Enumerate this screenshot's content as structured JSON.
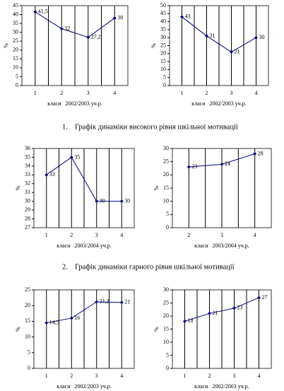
{
  "chart_data": [
    {
      "type": "line",
      "y_label": "%",
      "x_label": "класи   2002/2003 уч.р.",
      "categories": [
        "1",
        "2",
        "3",
        "4"
      ],
      "series": [
        {
          "color": "#000080",
          "values": [
            41.5,
            32,
            27.2,
            38
          ],
          "value_labels": [
            "41,5",
            "32",
            "27,2",
            "38"
          ]
        }
      ],
      "ylim": [
        0,
        45
      ],
      "yticks": [
        0,
        5,
        10,
        15,
        20,
        25,
        30,
        35,
        40,
        45
      ],
      "vertical_grid": true
    },
    {
      "type": "line",
      "y_label": "%",
      "x_label": "класи   2002/2003 уч.р.",
      "categories": [
        "1",
        "2",
        "3",
        "4"
      ],
      "series": [
        {
          "color": "#000080",
          "values": [
            43,
            31,
            21,
            30
          ]
        }
      ],
      "ylim": [
        0,
        50
      ],
      "yticks": [
        0,
        5,
        10,
        15,
        20,
        25,
        30,
        35,
        40,
        45,
        50
      ],
      "vertical_grid": true
    },
    {
      "type": "line",
      "y_label": "%",
      "x_label": "класи   2003/2004 уч.р.",
      "categories": [
        "1",
        "2",
        "3",
        "4"
      ],
      "series": [
        {
          "color": "#000080",
          "values": [
            33,
            35,
            30,
            30
          ]
        }
      ],
      "ylim": [
        27,
        36
      ],
      "yticks": [
        27,
        28,
        29,
        30,
        31,
        32,
        33,
        34,
        35,
        36
      ],
      "vertical_grid": true
    },
    {
      "type": "line",
      "y_label": "%",
      "x_label": "класи   2003/2004 уч.р.",
      "categories": [
        "2",
        "3",
        "4"
      ],
      "series": [
        {
          "color": "#000080",
          "values": [
            23,
            24,
            28
          ]
        }
      ],
      "ylim": [
        0,
        30
      ],
      "yticks": [
        0,
        5,
        10,
        15,
        20,
        25,
        30
      ],
      "vertical_grid": true
    },
    {
      "type": "line",
      "y_label": "%",
      "x_label": "класи   2002/2003 уч.р.",
      "categories": [
        "1",
        "2",
        "3",
        "4"
      ],
      "series": [
        {
          "color": "#000080",
          "values": [
            14.5,
            16,
            21.2,
            21
          ],
          "value_labels": [
            "14,5",
            "16",
            "21,2",
            "21"
          ]
        }
      ],
      "ylim": [
        0,
        25
      ],
      "yticks": [
        0,
        5,
        10,
        15,
        20,
        25
      ],
      "vertical_grid": true
    },
    {
      "type": "line",
      "y_label": "%",
      "x_label": "класи   2002/2003 уч.р.",
      "categories": [
        "1",
        "2",
        "3",
        "4"
      ],
      "series": [
        {
          "color": "#000080",
          "values": [
            18,
            21,
            23,
            27
          ]
        }
      ],
      "ylim": [
        0,
        30
      ],
      "yticks": [
        0,
        5,
        10,
        15,
        20,
        25,
        30
      ],
      "vertical_grid": true
    }
  ],
  "captions": [
    {
      "number": "1.",
      "text": "Графік динаміки високого рівня шкільної мотивації"
    },
    {
      "number": "2.",
      "text": "Графік динаміки гарного рівня шкільної мотивації"
    }
  ]
}
